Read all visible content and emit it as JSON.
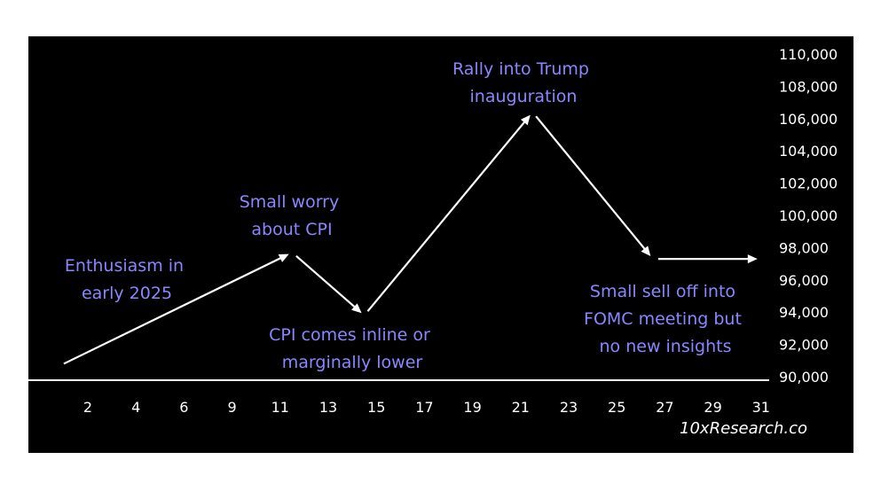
{
  "chart_data": {
    "type": "line",
    "title": "",
    "xlabel": "",
    "ylabel": "",
    "x_ticks": [
      "2",
      "4",
      "6",
      "9",
      "11",
      "13",
      "15",
      "17",
      "19",
      "21",
      "23",
      "25",
      "27",
      "29",
      "31"
    ],
    "y_ticks": [
      "90,000",
      "92,000",
      "94,000",
      "96,000",
      "98,000",
      "100,000",
      "102,000",
      "104,000",
      "106,000",
      "108,000",
      "110,000"
    ],
    "ylim": [
      90000,
      110000
    ],
    "grid": false,
    "series": [
      {
        "points": [
          {
            "x": 1,
            "y": 90800
          },
          {
            "x": 11.5,
            "y": 97700
          },
          {
            "x": 14.5,
            "y": 93800
          },
          {
            "x": 21.5,
            "y": 106400
          },
          {
            "x": 26.5,
            "y": 97300
          },
          {
            "x": 31,
            "y": 97300
          }
        ]
      }
    ],
    "annotations": [
      {
        "lines": [
          "Enthusiasm in",
          "early 2025"
        ]
      },
      {
        "lines": [
          "Small worry",
          "about CPI"
        ]
      },
      {
        "lines": [
          "CPI comes inline or",
          "marginally lower"
        ]
      },
      {
        "lines": [
          "Rally into Trump",
          "inauguration"
        ]
      },
      {
        "lines": [
          "Small sell off into",
          "FOMC meeting but",
          "no new insights"
        ]
      }
    ],
    "watermark": "10xResearch.co",
    "colors": {
      "background": "#000000",
      "line": "#ffffff",
      "annotation": "#8a86ff",
      "text": "#ffffff"
    }
  }
}
